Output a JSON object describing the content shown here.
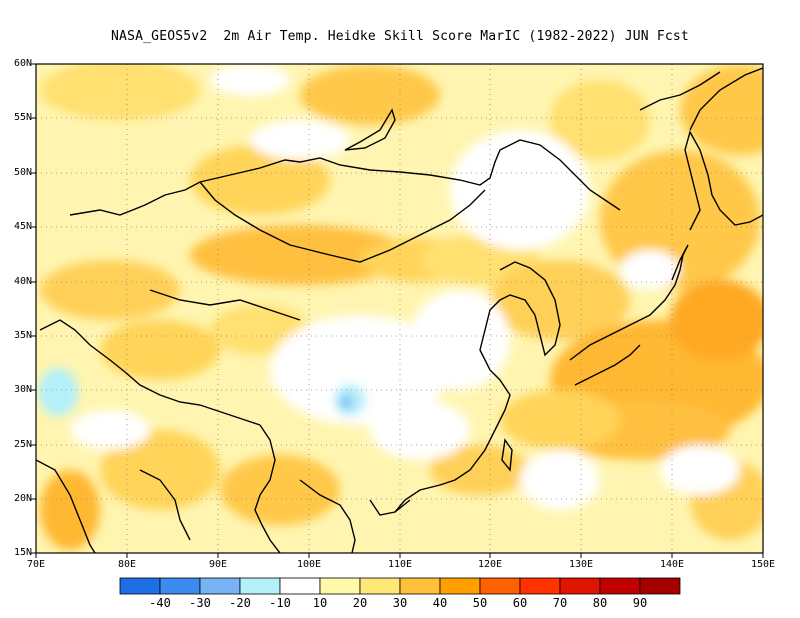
{
  "title": "NASA_GEOS5v2  2m Air Temp. Heidke Skill Score MarIC (1982-2022) JUN Fcst",
  "map": {
    "lon_range": [
      70,
      150
    ],
    "lat_range": [
      15,
      60
    ],
    "lon_labels": [
      "70E",
      "80E",
      "90E",
      "100E",
      "110E",
      "120E",
      "130E",
      "140E",
      "150E"
    ],
    "lat_labels": [
      "60N",
      "55N",
      "50N",
      "45N",
      "40N",
      "35N",
      "30N",
      "25N",
      "20N",
      "15N"
    ],
    "gridlines": "dotted"
  },
  "colorbar": {
    "labels": [
      "-40",
      "-30",
      "-20",
      "-10",
      "10",
      "20",
      "30",
      "40",
      "50",
      "60",
      "70",
      "80",
      "90"
    ],
    "colors": [
      "#1e6ee6",
      "#3c8cf0",
      "#78b4f5",
      "#b4f0fa",
      "#ffffff",
      "#fffaaa",
      "#ffe878",
      "#ffc03c",
      "#ffa000",
      "#ff6000",
      "#ff3200",
      "#e11400",
      "#c00000",
      "#a50000"
    ]
  }
}
